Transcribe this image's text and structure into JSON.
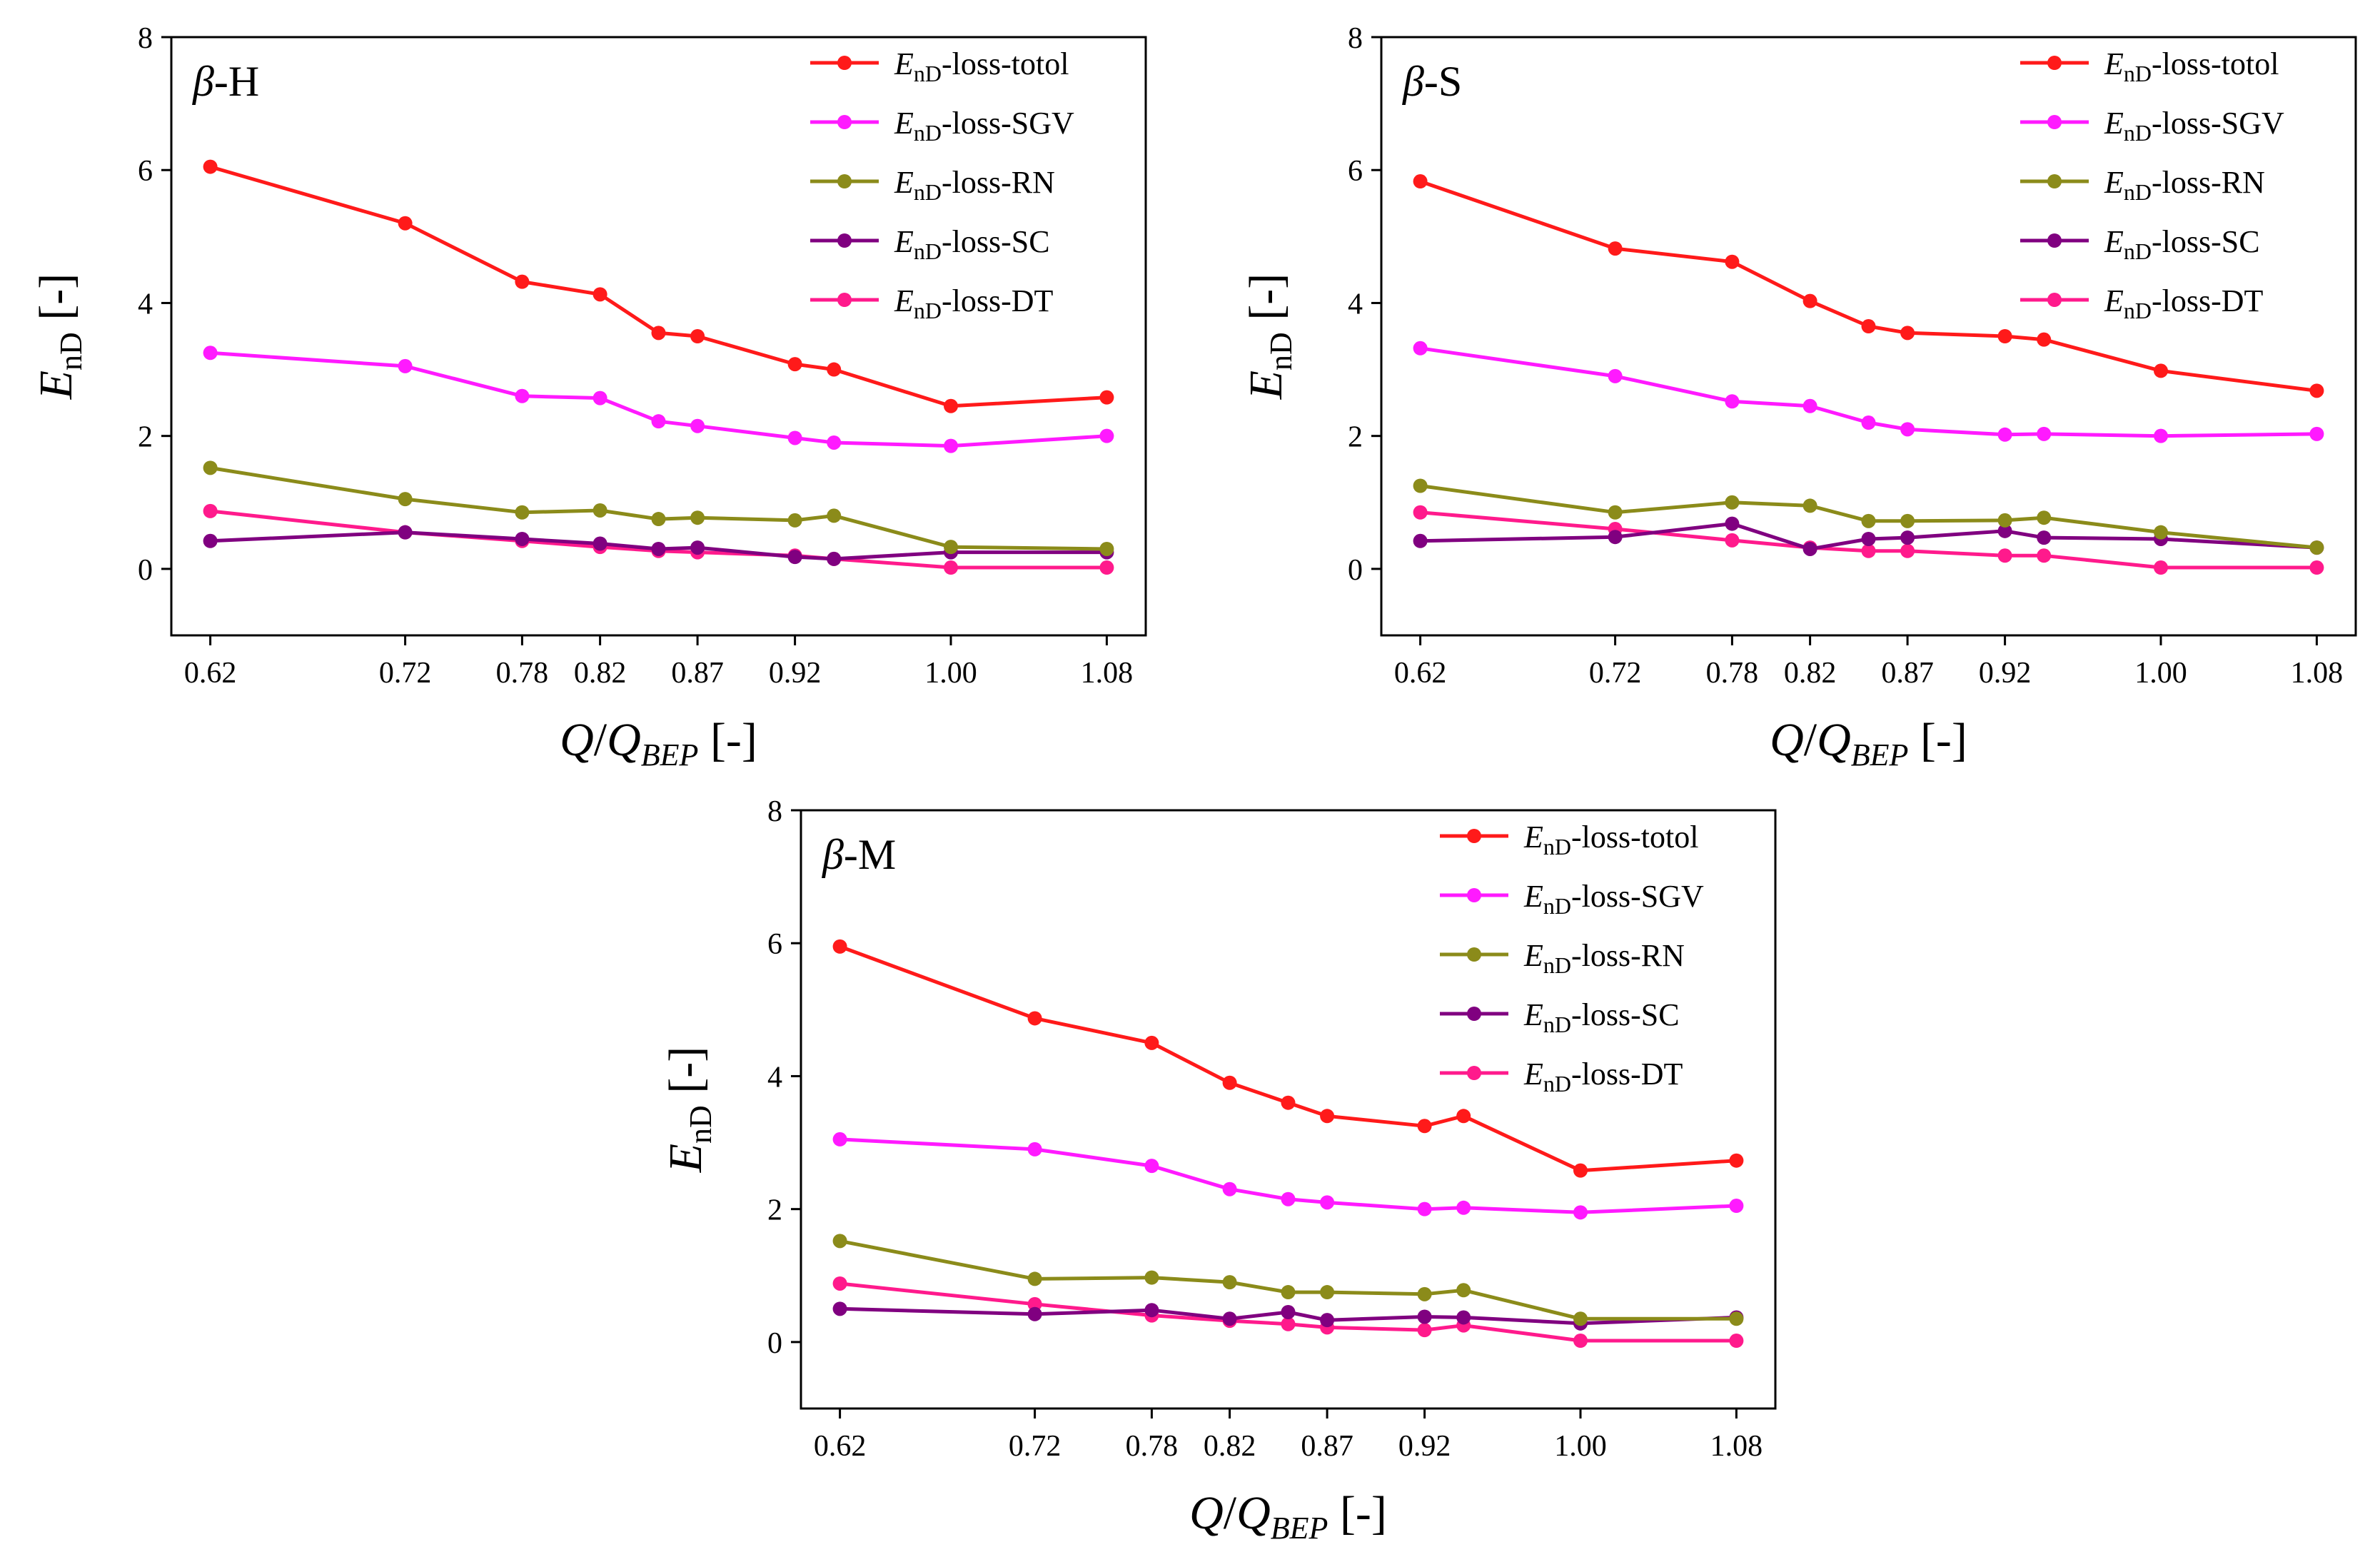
{
  "figure": {
    "y_axis_title": {
      "main": "E",
      "sub": "nD",
      "suffix": " [-]"
    },
    "x_axis_title": {
      "q": "Q",
      "slash": "/",
      "qb": "Q",
      "sub": "BEP",
      "suffix": " [-]"
    },
    "legend_prefix": {
      "main": "E",
      "sub": "nD"
    }
  },
  "colors": {
    "totol": "#ff1a1a",
    "sgv": "#ff1aff",
    "rn": "#8b8b1a",
    "sc": "#800080",
    "dt": "#ff1a8c"
  },
  "chart_data": [
    {
      "type": "line",
      "panel": "β-H",
      "panel_label": {
        "symbol": "β",
        "rest": "-H"
      },
      "xlim": [
        0.6,
        1.1
      ],
      "ylim": [
        -1,
        8
      ],
      "xticks": [
        0.62,
        0.72,
        0.78,
        0.82,
        0.87,
        0.92,
        1.0,
        1.08
      ],
      "xtick_labels": [
        "0.62",
        "0.72",
        "0.78",
        "0.82",
        "0.87",
        "0.92",
        "1.00",
        "1.08"
      ],
      "yticks": [
        0,
        2,
        4,
        6,
        8
      ],
      "ytick_labels": [
        "0",
        "2",
        "4",
        "6",
        "8"
      ],
      "x": [
        0.62,
        0.72,
        0.78,
        0.82,
        0.85,
        0.87,
        0.92,
        0.94,
        1.0,
        1.08
      ],
      "series": [
        {
          "name": "-loss-totol",
          "key": "totol",
          "values": [
            6.05,
            5.2,
            4.32,
            4.13,
            3.55,
            3.5,
            3.08,
            3.0,
            2.45,
            2.58
          ]
        },
        {
          "name": "-loss-SGV",
          "key": "sgv",
          "values": [
            3.25,
            3.05,
            2.6,
            2.57,
            2.22,
            2.15,
            1.97,
            1.9,
            1.85,
            2.0
          ]
        },
        {
          "name": "-loss-RN",
          "key": "rn",
          "values": [
            1.52,
            1.05,
            0.85,
            0.88,
            0.75,
            0.77,
            0.73,
            0.8,
            0.33,
            0.3
          ]
        },
        {
          "name": "-loss-SC",
          "key": "sc",
          "values": [
            0.42,
            0.55,
            0.45,
            0.38,
            0.3,
            0.32,
            0.18,
            0.15,
            0.25,
            0.25
          ]
        },
        {
          "name": "-loss-DT",
          "key": "dt",
          "values": [
            0.87,
            0.55,
            0.42,
            0.33,
            0.27,
            0.25,
            0.2,
            0.15,
            0.02,
            0.02
          ]
        }
      ]
    },
    {
      "type": "line",
      "panel": "β-S",
      "panel_label": {
        "symbol": "β",
        "rest": "-S"
      },
      "xlim": [
        0.6,
        1.1
      ],
      "ylim": [
        -1,
        8
      ],
      "xticks": [
        0.62,
        0.72,
        0.78,
        0.82,
        0.87,
        0.92,
        1.0,
        1.08
      ],
      "xtick_labels": [
        "0.62",
        "0.72",
        "0.78",
        "0.82",
        "0.87",
        "0.92",
        "1.00",
        "1.08"
      ],
      "yticks": [
        0,
        2,
        4,
        6,
        8
      ],
      "ytick_labels": [
        "0",
        "2",
        "4",
        "6",
        "8"
      ],
      "x": [
        0.62,
        0.72,
        0.78,
        0.82,
        0.85,
        0.87,
        0.92,
        0.94,
        1.0,
        1.08
      ],
      "series": [
        {
          "name": "-loss-totol",
          "key": "totol",
          "values": [
            5.83,
            4.82,
            4.62,
            4.03,
            3.65,
            3.55,
            3.5,
            3.45,
            2.98,
            2.68
          ]
        },
        {
          "name": "-loss-SGV",
          "key": "sgv",
          "values": [
            3.32,
            2.9,
            2.52,
            2.45,
            2.2,
            2.1,
            2.02,
            2.03,
            2.0,
            2.03
          ]
        },
        {
          "name": "-loss-RN",
          "key": "rn",
          "values": [
            1.25,
            0.85,
            1.0,
            0.95,
            0.72,
            0.72,
            0.73,
            0.77,
            0.55,
            0.32
          ]
        },
        {
          "name": "-loss-SC",
          "key": "sc",
          "values": [
            0.42,
            0.48,
            0.68,
            0.3,
            0.45,
            0.47,
            0.57,
            0.47,
            0.45,
            0.32
          ]
        },
        {
          "name": "-loss-DT",
          "key": "dt",
          "values": [
            0.85,
            0.6,
            0.43,
            0.32,
            0.27,
            0.27,
            0.2,
            0.2,
            0.02,
            0.02
          ]
        }
      ]
    },
    {
      "type": "line",
      "panel": "β-M",
      "panel_label": {
        "symbol": "β",
        "rest": "-M"
      },
      "xlim": [
        0.6,
        1.1
      ],
      "ylim": [
        -1,
        8
      ],
      "xticks": [
        0.62,
        0.72,
        0.78,
        0.82,
        0.87,
        0.92,
        1.0,
        1.08
      ],
      "xtick_labels": [
        "0.62",
        "0.72",
        "0.78",
        "0.82",
        "0.87",
        "0.92",
        "1.00",
        "1.08"
      ],
      "yticks": [
        0,
        2,
        4,
        6,
        8
      ],
      "ytick_labels": [
        "0",
        "2",
        "4",
        "6",
        "8"
      ],
      "x": [
        0.62,
        0.72,
        0.78,
        0.82,
        0.85,
        0.87,
        0.92,
        0.94,
        1.0,
        1.08
      ],
      "series": [
        {
          "name": "-loss-totol",
          "key": "totol",
          "values": [
            5.95,
            4.87,
            4.5,
            3.9,
            3.6,
            3.4,
            3.25,
            3.4,
            2.58,
            2.73
          ]
        },
        {
          "name": "-loss-SGV",
          "key": "sgv",
          "values": [
            3.05,
            2.9,
            2.65,
            2.3,
            2.15,
            2.1,
            2.0,
            2.02,
            1.95,
            2.05
          ]
        },
        {
          "name": "-loss-RN",
          "key": "rn",
          "values": [
            1.52,
            0.95,
            0.97,
            0.9,
            0.75,
            0.75,
            0.72,
            0.78,
            0.35,
            0.35
          ]
        },
        {
          "name": "-loss-SC",
          "key": "sc",
          "values": [
            0.5,
            0.42,
            0.48,
            0.35,
            0.45,
            0.33,
            0.38,
            0.37,
            0.28,
            0.37
          ]
        },
        {
          "name": "-loss-DT",
          "key": "dt",
          "values": [
            0.88,
            0.57,
            0.4,
            0.32,
            0.27,
            0.22,
            0.18,
            0.25,
            0.02,
            0.02
          ]
        }
      ]
    }
  ]
}
